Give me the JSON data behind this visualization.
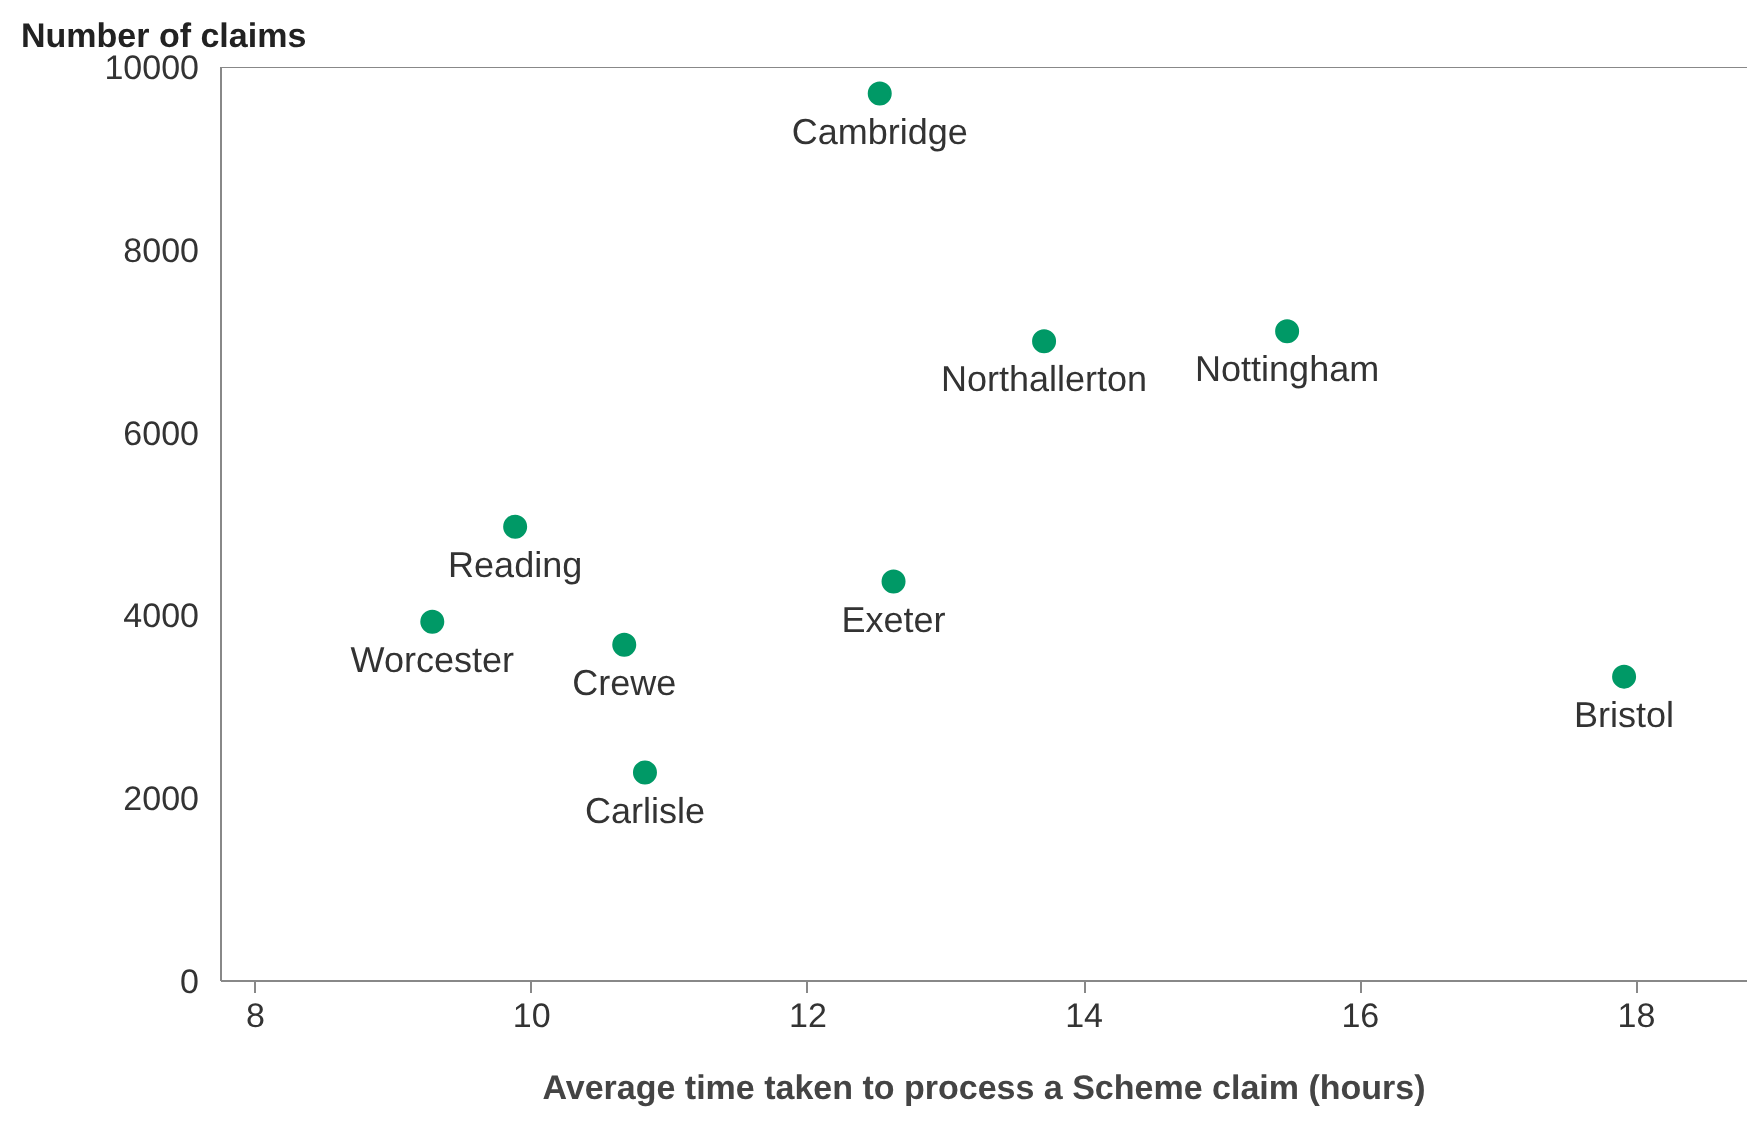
{
  "chart_data": {
    "type": "scatter",
    "xlabel": "Average time taken to process a Scheme claim (hours)",
    "ylabel": "Number of claims",
    "x": [
      12.52,
      13.71,
      15.47,
      9.88,
      9.28,
      10.67,
      12.62,
      10.82,
      17.91
    ],
    "series": [
      {
        "color": "#009966",
        "values": [
          9710,
          7000,
          7110,
          4970,
          3930,
          3680,
          4370,
          2280,
          3330
        ]
      }
    ],
    "annotations": [
      {
        "text": "Cambridge",
        "x": 12.52,
        "y": 9710
      },
      {
        "text": "Northallerton",
        "x": 13.71,
        "y": 7000
      },
      {
        "text": "Nottingham",
        "x": 15.47,
        "y": 7110
      },
      {
        "text": "Reading",
        "x": 9.88,
        "y": 4970
      },
      {
        "text": "Worcester",
        "x": 9.28,
        "y": 3930
      },
      {
        "text": "Crewe",
        "x": 10.67,
        "y": 3680
      },
      {
        "text": "Exeter",
        "x": 12.62,
        "y": 4370
      },
      {
        "text": "Carlisle",
        "x": 10.82,
        "y": 2280
      },
      {
        "text": "Bristol",
        "x": 17.91,
        "y": 3330
      }
    ],
    "xlim": [
      7.75,
      18.8
    ],
    "ylim": [
      0,
      10000
    ],
    "xticks": [
      8,
      10,
      12,
      14,
      16,
      18
    ],
    "yticks": [
      0,
      2000,
      4000,
      6000,
      8000,
      10000
    ],
    "marker": "circle"
  }
}
